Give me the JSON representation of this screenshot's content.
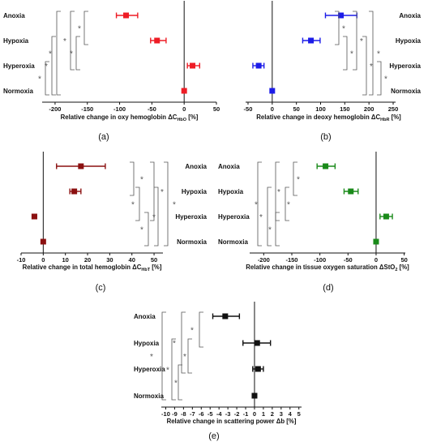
{
  "chart_data": [
    {
      "type": "dot-errorbar",
      "panel_label": "(a)",
      "xlabel": "Relative change in oxy hemoglobin ΔC",
      "xlabel_sub": "HbO",
      "xlabel_unit": " [%]",
      "xlim": [
        -220,
        50
      ],
      "xticks": [
        -200,
        -150,
        -100,
        -50,
        0,
        50
      ],
      "color": "#ee1c25",
      "categories": [
        "Anoxia",
        "Hypoxia",
        "Hyperoxia",
        "Normoxia"
      ],
      "labels_side": "left",
      "values": [
        -90,
        -42,
        13,
        0
      ],
      "err_low": [
        -105,
        -52,
        5,
        0
      ],
      "err_high": [
        -72,
        -28,
        24,
        0
      ],
      "significance": [
        "*",
        "*",
        "*",
        "*",
        "*",
        "*"
      ]
    },
    {
      "type": "dot-errorbar",
      "panel_label": "(b)",
      "xlabel": "Relative change in deoxy hemoglobin ΔC",
      "xlabel_sub": "HbR",
      "xlabel_unit": " [%]",
      "xlim": [
        -55,
        255
      ],
      "xticks": [
        -50,
        0,
        50,
        100,
        150,
        200,
        250
      ],
      "color": "#1c1ce8",
      "categories": [
        "Anoxia",
        "Hypoxia",
        "Hyperoxia",
        "Normoxia"
      ],
      "labels_side": "right",
      "values": [
        142,
        80,
        -28,
        0
      ],
      "err_low": [
        110,
        63,
        -40,
        0
      ],
      "err_high": [
        175,
        99,
        -17,
        0
      ],
      "significance": [
        "*",
        "*",
        "*",
        "*",
        "*",
        "*"
      ]
    },
    {
      "type": "dot-errorbar",
      "panel_label": "(c)",
      "xlabel": "Relative change in total hemoglobin ΔC",
      "xlabel_sub": "HbT",
      "xlabel_unit": " [%]",
      "xlim": [
        -10,
        54
      ],
      "xticks": [
        -10,
        0,
        10,
        20,
        30,
        40,
        50
      ],
      "color": "#8b1010",
      "categories": [
        "Anoxia",
        "Hypoxia",
        "Hyperoxia",
        "Normoxia"
      ],
      "labels_side": "right",
      "values": [
        17,
        14,
        -4,
        0
      ],
      "err_low": [
        6,
        12,
        -5,
        0
      ],
      "err_high": [
        28,
        17,
        -3,
        0
      ],
      "significance": [
        "*",
        "*",
        "*",
        "*",
        "*",
        "*"
      ]
    },
    {
      "type": "dot-errorbar",
      "panel_label": "(d)",
      "xlabel": "Relative change in tissue oxygen saturation ΔStO",
      "xlabel_sub": "2",
      "xlabel_unit": " [%]",
      "xlim": [
        -225,
        52
      ],
      "xticks": [
        -200,
        -150,
        -100,
        -50,
        0,
        50
      ],
      "color": "#1a8a1a",
      "categories": [
        "Anoxia",
        "Hypoxia",
        "Hyperoxia",
        "Normoxia"
      ],
      "labels_side": "left",
      "values": [
        -90,
        -45,
        18,
        0
      ],
      "err_low": [
        -105,
        -57,
        7,
        0
      ],
      "err_high": [
        -73,
        -32,
        29,
        0
      ],
      "significance": [
        "*",
        "*",
        "*",
        "*",
        "*",
        "*"
      ]
    },
    {
      "type": "dot-errorbar",
      "panel_label": "(e)",
      "xlabel": "Relative change in scattering power Δb",
      "xlabel_sub": "",
      "xlabel_unit": " [%]",
      "xlim": [
        -10.5,
        5.3
      ],
      "xticks": [
        -10,
        -9,
        -8,
        -7,
        -6,
        -5,
        -4,
        -3,
        -2,
        -1,
        0,
        1,
        2,
        3,
        4,
        5
      ],
      "color": "#111111",
      "categories": [
        "Anoxia",
        "Hypoxia",
        "Hyperoxia",
        "Normoxia"
      ],
      "labels_side": "left",
      "values": [
        -3.3,
        0.3,
        0.4,
        0
      ],
      "err_low": [
        -4.7,
        -1.3,
        -0.2,
        0
      ],
      "err_high": [
        -1.7,
        1.8,
        1.0,
        0
      ],
      "significance": [
        "*",
        "*",
        "*",
        "*",
        "*",
        "*"
      ]
    }
  ]
}
